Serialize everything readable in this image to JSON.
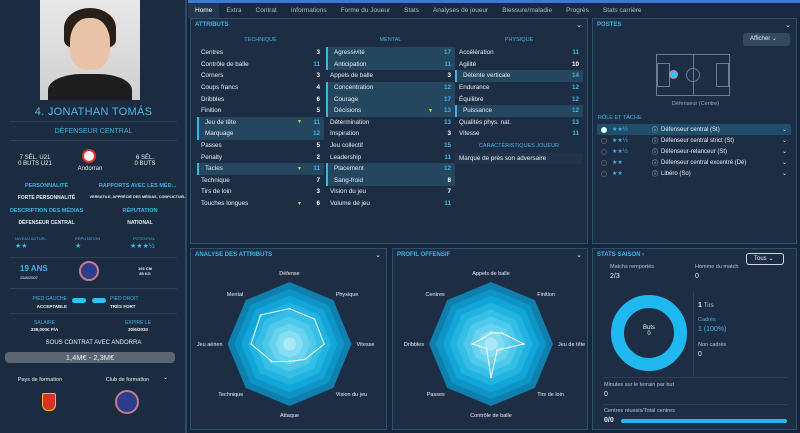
{
  "player": {
    "name": "4. JONATHAN TOMÁS",
    "position": "DÉFENSEUR CENTRAL",
    "caps_u21": "7 SÉL. U21",
    "goals_u21": "0 BUTS U21",
    "nationality": "Andorran",
    "caps": "6 SÉL.",
    "goals": "0 BUTS",
    "personality_label": "PERSONNALITÉ",
    "personality": "FORTE PERSONNALITÉ",
    "media_label": "RAPPORTS AVEC LES MÉD...",
    "media": "VERSATILE, APPRÉCIÉ DES MÉDIAS, CONFLICTUEL",
    "media_desc_label": "DESCRIPTION DES MÉDIAS",
    "media_desc": "DÉFENSEUR CENTRAL",
    "reputation_label": "RÉPUTATION",
    "reputation": "NATIONAL",
    "level_label": "NIVEAU ACTUEL",
    "level_stars": "★★",
    "rep_label": "RÉPUTATION",
    "rep_stars": "★",
    "potential_label": "POTENTIEL",
    "potential_stars": "★★★½",
    "age": "19 ANS",
    "dob": "25/8/2007",
    "height": "193 CM",
    "weight": "85 KG",
    "left_foot_label": "PIED GAUCHE",
    "left_foot": "ACCEPTABLE",
    "right_foot_label": "PIED DROIT",
    "right_foot": "TRÈS FORT",
    "salary_label": "SALAIRE",
    "salary": "338,000€ P/A",
    "expiry_label": "EXPIRE LE",
    "expiry": "30/6/2030",
    "contract": "SOUS CONTRAT AVEC ANDORRA",
    "value": "1,4M€ - 2,3M€",
    "training_country": "Pays de formation",
    "training_club": "Club de formation"
  },
  "tabs": [
    "Home",
    "Extra",
    "Contrat",
    "Informations",
    "Forme du Joueur",
    "Stats",
    "Analyses de joueur",
    "Blessure/maladie",
    "Progrès",
    "Stats carrière"
  ],
  "attributes": {
    "title": "ATTRIBUTS",
    "technique": {
      "label": "TECHNIQUE",
      "rows": [
        [
          "Centres",
          "3"
        ],
        [
          "Contrôle de balle",
          "11"
        ],
        [
          "Corners",
          "3"
        ],
        [
          "Coups francs",
          "4"
        ],
        [
          "Dribbles",
          "6"
        ],
        [
          "Finition",
          "5"
        ],
        [
          "Jeu de tête",
          "11"
        ],
        [
          "Marquage",
          "12"
        ],
        [
          "Passes",
          "5"
        ],
        [
          "Penalty",
          "2"
        ],
        [
          "Tacles",
          "11"
        ],
        [
          "Technique",
          "7"
        ],
        [
          "Tirs de loin",
          "3"
        ],
        [
          "Touches longues",
          "6"
        ]
      ]
    },
    "mental": {
      "label": "MENTAL",
      "rows": [
        [
          "Agressivité",
          "17"
        ],
        [
          "Anticipation",
          "11"
        ],
        [
          "Appels de balle",
          "3"
        ],
        [
          "Concentration",
          "12"
        ],
        [
          "Courage",
          "17"
        ],
        [
          "Décisions",
          "13"
        ],
        [
          "Détermination",
          "13"
        ],
        [
          "Inspiration",
          "3"
        ],
        [
          "Jeu collectif",
          "15"
        ],
        [
          "Leadership",
          "11"
        ],
        [
          "Placement",
          "12"
        ],
        [
          "Sang-froid",
          "8"
        ],
        [
          "Vision du jeu",
          "7"
        ],
        [
          "Volume de jeu",
          "11"
        ]
      ]
    },
    "physique": {
      "label": "PHYSIQUE",
      "rows": [
        [
          "Accélération",
          "11"
        ],
        [
          "Agilité",
          "10"
        ],
        [
          "Détente verticale",
          "14"
        ],
        [
          "Endurance",
          "12"
        ],
        [
          "Équilibre",
          "12"
        ],
        [
          "Puissance",
          "12"
        ],
        [
          "Qualités phys. nat.",
          "13"
        ],
        [
          "Vitesse",
          "11"
        ]
      ]
    },
    "traits_label": "CARACTÉRISTIQUES JOUEUR",
    "traits": [
      "Marque de près son adversaire"
    ]
  },
  "positions": {
    "title": "POSTES",
    "show": "Afficher",
    "position": "Défenseur (Centre)",
    "roles_label": "RÔLE ET TÂCHE",
    "roles": [
      {
        "stars": "★★½",
        "name": "Défenseur central (St)"
      },
      {
        "stars": "★★½",
        "name": "Défenseur central strict (St)"
      },
      {
        "stars": "★★½",
        "name": "Défenseur-relanceur (St)"
      },
      {
        "stars": "★★",
        "name": "Défenseur central excentré (Dé)"
      },
      {
        "stars": "★★",
        "name": "Libéro (So)"
      }
    ]
  },
  "season": {
    "title": "STATS SAISON ›",
    "filter": "Tous",
    "wins_label": "Matchs remportés",
    "wins": "2/3",
    "motm_label": "Homme du match",
    "motm": "0",
    "goals_label": "Buts",
    "goals": "0",
    "shots": "1",
    "shots_label": "Tirs",
    "on_target_label": "Cadrés",
    "on_target": "1 (100%)",
    "off_target_label": "Non cadrés",
    "off_target": "0",
    "mins_label": "Minutes sur le terrain par but",
    "mins": "0",
    "crosses_label": "Centres réussis/Total centres",
    "crosses": "0/0"
  },
  "chart_data": [
    {
      "type": "radar",
      "title": "ANALYSE DES ATTRIBUTS",
      "axes": [
        "Défense",
        "Physique",
        "Vitesse",
        "Vision du jeu",
        "Attaque",
        "Technique",
        "Jeu aérien",
        "Mental"
      ],
      "values": [
        0.57,
        0.57,
        0.56,
        0.35,
        0.28,
        0.4,
        0.62,
        0.66
      ],
      "range": [
        0,
        1
      ]
    },
    {
      "type": "radar",
      "title": "PROFIL OFFENSIF",
      "axes": [
        "Appels de balle",
        "Finition",
        "Jeu de tête",
        "Tirs de loin",
        "Contrôle de balle",
        "Passes",
        "Dribbles",
        "Centres"
      ],
      "values": [
        0.18,
        0.25,
        0.53,
        0.14,
        0.54,
        0.1,
        0.3,
        0.15
      ],
      "range": [
        0,
        1
      ]
    }
  ],
  "colors": {
    "accent": "#3fb4e4",
    "bg": "#1d2e44"
  }
}
